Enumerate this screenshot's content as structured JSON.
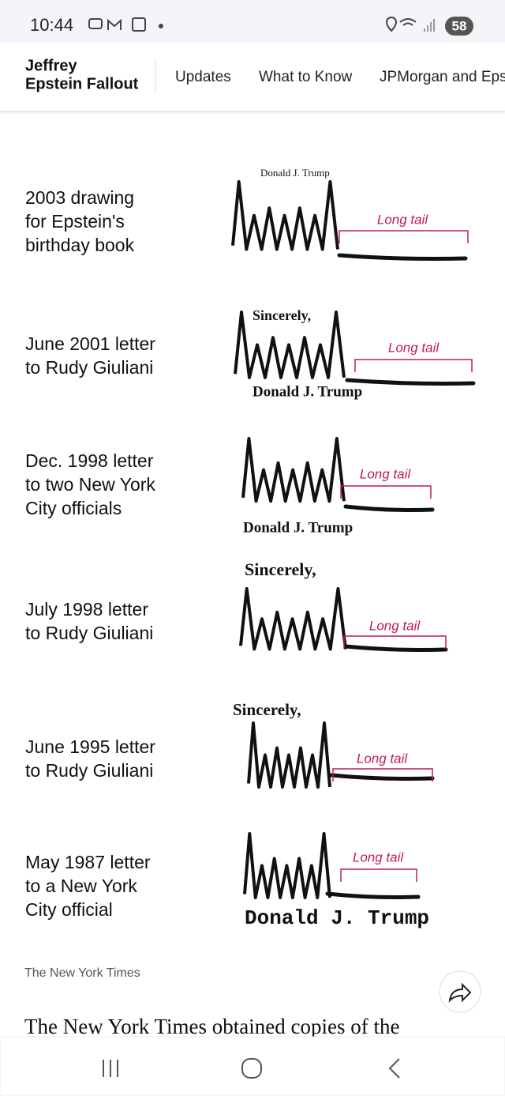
{
  "status_bar": {
    "time": "10:44",
    "battery": "58"
  },
  "nav": {
    "title_lines": [
      "Jeffrey",
      "Epstein Fallout"
    ],
    "tabs": [
      "Updates",
      "What to Know",
      "JPMorgan and Eps"
    ]
  },
  "signatures": [
    {
      "label_lines": [
        "2003 drawing",
        "for Epstein's",
        "birthday book"
      ],
      "texts": [
        "Donald J. Trump"
      ],
      "annotation": "Long tail"
    },
    {
      "label_lines": [
        "June 2001 letter",
        "to Rudy Giuliani"
      ],
      "texts": [
        "Sincerely,",
        "Donald J. Trump"
      ],
      "annotation": "Long tail"
    },
    {
      "label_lines": [
        "Dec. 1998 letter",
        "to two New York",
        "City officials"
      ],
      "texts": [
        "Donald J. Trump"
      ],
      "annotation": "Long tail"
    },
    {
      "label_lines": [
        "July 1998 letter",
        "to Rudy Giuliani"
      ],
      "texts": [
        "Sincerely,"
      ],
      "annotation": "Long tail"
    },
    {
      "label_lines": [
        "June 1995 letter",
        "to Rudy Giuliani"
      ],
      "texts": [
        "Sincerely,"
      ],
      "annotation": "Long tail"
    },
    {
      "label_lines": [
        "May 1987 letter",
        "to a New York",
        "City official"
      ],
      "texts": [
        "Donald J. Trump"
      ],
      "annotation": "Long tail"
    }
  ],
  "credit": "The New York Times",
  "body_text": "The New York Times obtained copies of the"
}
